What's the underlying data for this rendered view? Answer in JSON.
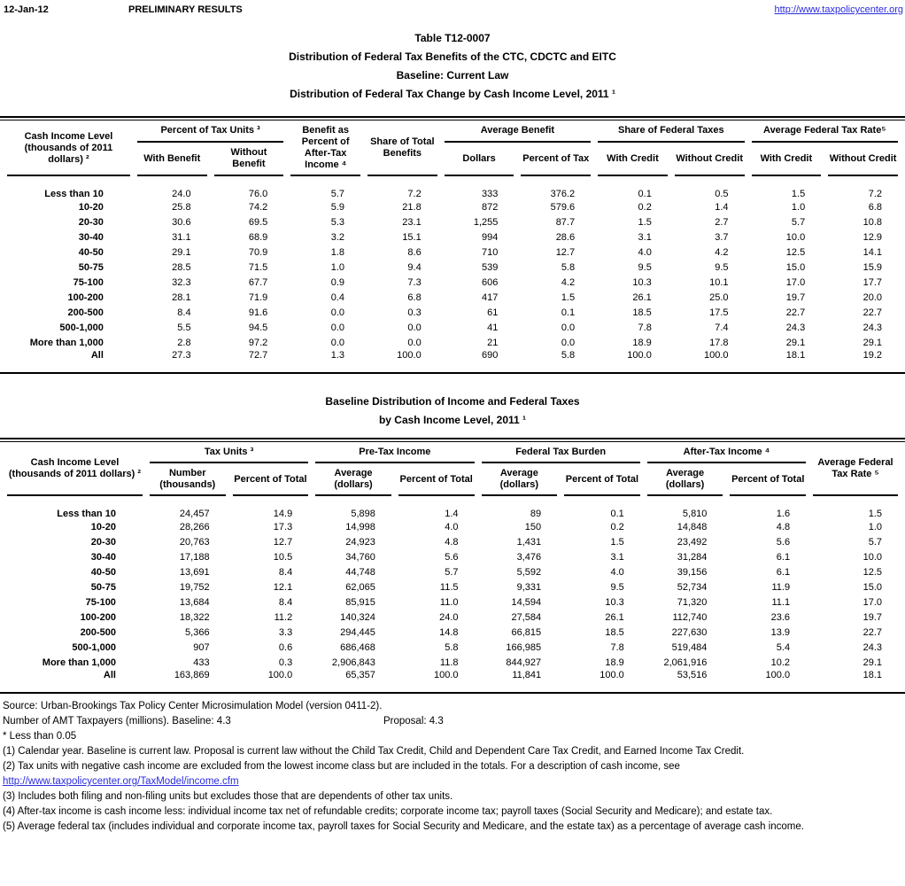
{
  "colors": {
    "link_blue": "#2b2be0",
    "text": "#000000",
    "rule": "#000000"
  },
  "header": {
    "date": "12-Jan-12",
    "status": "PRELIMINARY RESULTS",
    "site_link": "http://www.taxpolicycenter.org"
  },
  "table1": {
    "title": {
      "line1": "Table T12-0007",
      "line2": "Distribution of Federal Tax Benefits of the CTC, CDCTC and EITC",
      "line3": "Baseline: Current Law",
      "line4": "Distribution of Federal Tax Change by Cash Income Level, 2011 ¹"
    },
    "row_header": "Cash Income Level (thousands of 2011 dollars) ²",
    "groups": [
      "Percent of Tax Units ³",
      "Benefit as Percent of After-Tax Income ⁴",
      "Share of Total Benefits",
      "Average Benefit",
      "Share of Federal Taxes",
      "Average Federal Tax Rate⁵"
    ],
    "subheaders": [
      "With Benefit",
      "Without Benefit",
      "Dollars",
      "Percent of Tax",
      "With Credit",
      "Without Credit",
      "With Credit",
      "Without Credit"
    ],
    "rows": [
      [
        "Less than 10",
        "24.0",
        "76.0",
        "5.7",
        "7.2",
        "333",
        "376.2",
        "0.1",
        "0.5",
        "1.5",
        "7.2"
      ],
      [
        "10-20",
        "25.8",
        "74.2",
        "5.9",
        "21.8",
        "872",
        "579.6",
        "0.2",
        "1.4",
        "1.0",
        "6.8"
      ],
      [
        "20-30",
        "30.6",
        "69.5",
        "5.3",
        "23.1",
        "1,255",
        "87.7",
        "1.5",
        "2.7",
        "5.7",
        "10.8"
      ],
      [
        "30-40",
        "31.1",
        "68.9",
        "3.2",
        "15.1",
        "994",
        "28.6",
        "3.1",
        "3.7",
        "10.0",
        "12.9"
      ],
      [
        "40-50",
        "29.1",
        "70.9",
        "1.8",
        "8.6",
        "710",
        "12.7",
        "4.0",
        "4.2",
        "12.5",
        "14.1"
      ],
      [
        "50-75",
        "28.5",
        "71.5",
        "1.0",
        "9.4",
        "539",
        "5.8",
        "9.5",
        "9.5",
        "15.0",
        "15.9"
      ],
      [
        "75-100",
        "32.3",
        "67.7",
        "0.9",
        "7.3",
        "606",
        "4.2",
        "10.3",
        "10.1",
        "17.0",
        "17.7"
      ],
      [
        "100-200",
        "28.1",
        "71.9",
        "0.4",
        "6.8",
        "417",
        "1.5",
        "26.1",
        "25.0",
        "19.7",
        "20.0"
      ],
      [
        "200-500",
        "8.4",
        "91.6",
        "0.0",
        "0.3",
        "61",
        "0.1",
        "18.5",
        "17.5",
        "22.7",
        "22.7"
      ],
      [
        "500-1,000",
        "5.5",
        "94.5",
        "0.0",
        "0.0",
        "41",
        "0.0",
        "7.8",
        "7.4",
        "24.3",
        "24.3"
      ],
      [
        "More than 1,000",
        "2.8",
        "97.2",
        "0.0",
        "0.0",
        "21",
        "0.0",
        "18.9",
        "17.8",
        "29.1",
        "29.1"
      ],
      [
        "All",
        "27.3",
        "72.7",
        "1.3",
        "100.0",
        "690",
        "5.8",
        "100.0",
        "100.0",
        "18.1",
        "19.2"
      ]
    ]
  },
  "table2": {
    "title": {
      "line1": "Baseline Distribution of Income and Federal Taxes",
      "line2": "by Cash Income Level, 2011 ¹"
    },
    "row_header": "Cash Income Level (thousands of 2011 dollars) ²",
    "groups": [
      "Tax Units ³",
      "Pre-Tax Income",
      "Federal Tax Burden",
      "After-Tax Income ⁴",
      "Average Federal Tax Rate ⁵"
    ],
    "subheaders": [
      "Number (thousands)",
      "Percent of Total",
      "Average (dollars)",
      "Percent of Total",
      "Average (dollars)",
      "Percent of Total",
      "Average (dollars)",
      "Percent of Total"
    ],
    "rows": [
      [
        "Less than 10",
        "24,457",
        "14.9",
        "5,898",
        "1.4",
        "89",
        "0.1",
        "5,810",
        "1.6",
        "1.5"
      ],
      [
        "10-20",
        "28,266",
        "17.3",
        "14,998",
        "4.0",
        "150",
        "0.2",
        "14,848",
        "4.8",
        "1.0"
      ],
      [
        "20-30",
        "20,763",
        "12.7",
        "24,923",
        "4.8",
        "1,431",
        "1.5",
        "23,492",
        "5.6",
        "5.7"
      ],
      [
        "30-40",
        "17,188",
        "10.5",
        "34,760",
        "5.6",
        "3,476",
        "3.1",
        "31,284",
        "6.1",
        "10.0"
      ],
      [
        "40-50",
        "13,691",
        "8.4",
        "44,748",
        "5.7",
        "5,592",
        "4.0",
        "39,156",
        "6.1",
        "12.5"
      ],
      [
        "50-75",
        "19,752",
        "12.1",
        "62,065",
        "11.5",
        "9,331",
        "9.5",
        "52,734",
        "11.9",
        "15.0"
      ],
      [
        "75-100",
        "13,684",
        "8.4",
        "85,915",
        "11.0",
        "14,594",
        "10.3",
        "71,320",
        "11.1",
        "17.0"
      ],
      [
        "100-200",
        "18,322",
        "11.2",
        "140,324",
        "24.0",
        "27,584",
        "26.1",
        "112,740",
        "23.6",
        "19.7"
      ],
      [
        "200-500",
        "5,366",
        "3.3",
        "294,445",
        "14.8",
        "66,815",
        "18.5",
        "227,630",
        "13.9",
        "22.7"
      ],
      [
        "500-1,000",
        "907",
        "0.6",
        "686,468",
        "5.8",
        "166,985",
        "7.8",
        "519,484",
        "5.4",
        "24.3"
      ],
      [
        "More than 1,000",
        "433",
        "0.3",
        "2,906,843",
        "11.8",
        "844,927",
        "18.9",
        "2,061,916",
        "10.2",
        "29.1"
      ],
      [
        "All",
        "163,869",
        "100.0",
        "65,357",
        "100.0",
        "11,841",
        "100.0",
        "53,516",
        "100.0",
        "18.1"
      ]
    ]
  },
  "footnotes": {
    "source": "Source: Urban-Brookings Tax Policy Center Microsimulation Model (version 0411-2).",
    "amt_baseline": "Number of AMT Taxpayers (millions).  Baseline: 4.3",
    "amt_proposal": "Proposal: 4.3",
    "star": "* Less than 0.05",
    "n1": "(1) Calendar year. Baseline is current law. Proposal is current law without the Child Tax Credit, Child and Dependent Care Tax Credit, and Earned Income Tax Credit.",
    "n2": "(2) Tax units with negative cash income are excluded from the lowest income class but are included in the totals. For a description of cash income, see",
    "income_link": "http://www.taxpolicycenter.org/TaxModel/income.cfm",
    "n3": "(3) Includes both filing and non-filing units but excludes those that are dependents of other tax units.",
    "n4": "(4) After-tax income is cash income less: individual income tax net of refundable credits; corporate income tax; payroll taxes (Social Security and Medicare); and estate tax.",
    "n5": "(5) Average federal tax (includes individual and corporate income tax, payroll taxes for Social Security and Medicare, and the estate tax) as a percentage of average cash income."
  }
}
